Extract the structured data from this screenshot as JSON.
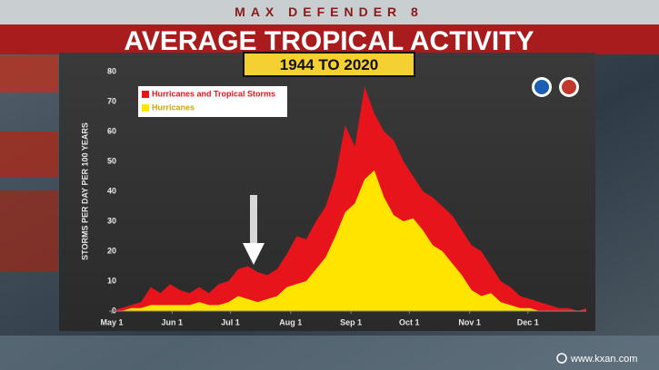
{
  "chart_data": {
    "type": "area",
    "banner": "MAX DEFENDER 8",
    "title": "AVERAGE TROPICAL ACTIVITY",
    "subtitle": "1944 TO 2020",
    "ylabel": "STORMS PER DAY PER 100 YEARS",
    "source": "www.kxan.com",
    "x": [
      0,
      5,
      10,
      15,
      20,
      25,
      30,
      35,
      40,
      45,
      50,
      55,
      60,
      65,
      70,
      75,
      80,
      85,
      90,
      95,
      100,
      105,
      110,
      115,
      120,
      125,
      130,
      135,
      140,
      145,
      150,
      155,
      160,
      165,
      170,
      175,
      180,
      185,
      190,
      195,
      200,
      205,
      210,
      215,
      220,
      225,
      230,
      235,
      240,
      244
    ],
    "series": [
      {
        "name": "Hurricanes and Tropical Storms",
        "color": "#e8141c",
        "values": [
          0,
          1,
          2,
          3,
          8,
          6,
          9,
          7,
          6,
          8,
          6,
          9,
          10,
          14,
          15,
          13,
          12,
          14,
          19,
          25,
          24,
          30,
          35,
          45,
          62,
          55,
          75,
          66,
          60,
          57,
          50,
          45,
          40,
          38,
          35,
          32,
          27,
          22,
          20,
          15,
          10,
          8,
          5,
          4,
          3,
          2,
          1,
          1,
          0,
          1
        ]
      },
      {
        "name": "Hurricanes",
        "color": "#ffe400",
        "values": [
          0,
          0,
          1,
          1,
          2,
          2,
          2,
          2,
          2,
          3,
          2,
          2,
          3,
          5,
          4,
          3,
          4,
          5,
          8,
          9,
          10,
          14,
          18,
          25,
          33,
          36,
          44,
          47,
          38,
          32,
          30,
          31,
          27,
          22,
          20,
          16,
          12,
          7,
          5,
          6,
          3,
          2,
          1,
          1,
          0,
          0,
          0,
          0,
          0,
          0
        ]
      }
    ],
    "xlim": [
      0,
      244
    ],
    "xticks": [
      {
        "value": 0,
        "label": "May 1"
      },
      {
        "value": 31,
        "label": "Jun 1"
      },
      {
        "value": 61,
        "label": "Jul 1"
      },
      {
        "value": 92,
        "label": "Aug 1"
      },
      {
        "value": 123,
        "label": "Sep 1"
      },
      {
        "value": 153,
        "label": "Oct 1"
      },
      {
        "value": 184,
        "label": "Nov 1"
      },
      {
        "value": 214,
        "label": "Dec 1"
      }
    ],
    "ylim": [
      0,
      80
    ],
    "yticks": [
      0,
      10,
      20,
      30,
      40,
      50,
      60,
      70,
      80
    ],
    "legend": "upper left"
  }
}
